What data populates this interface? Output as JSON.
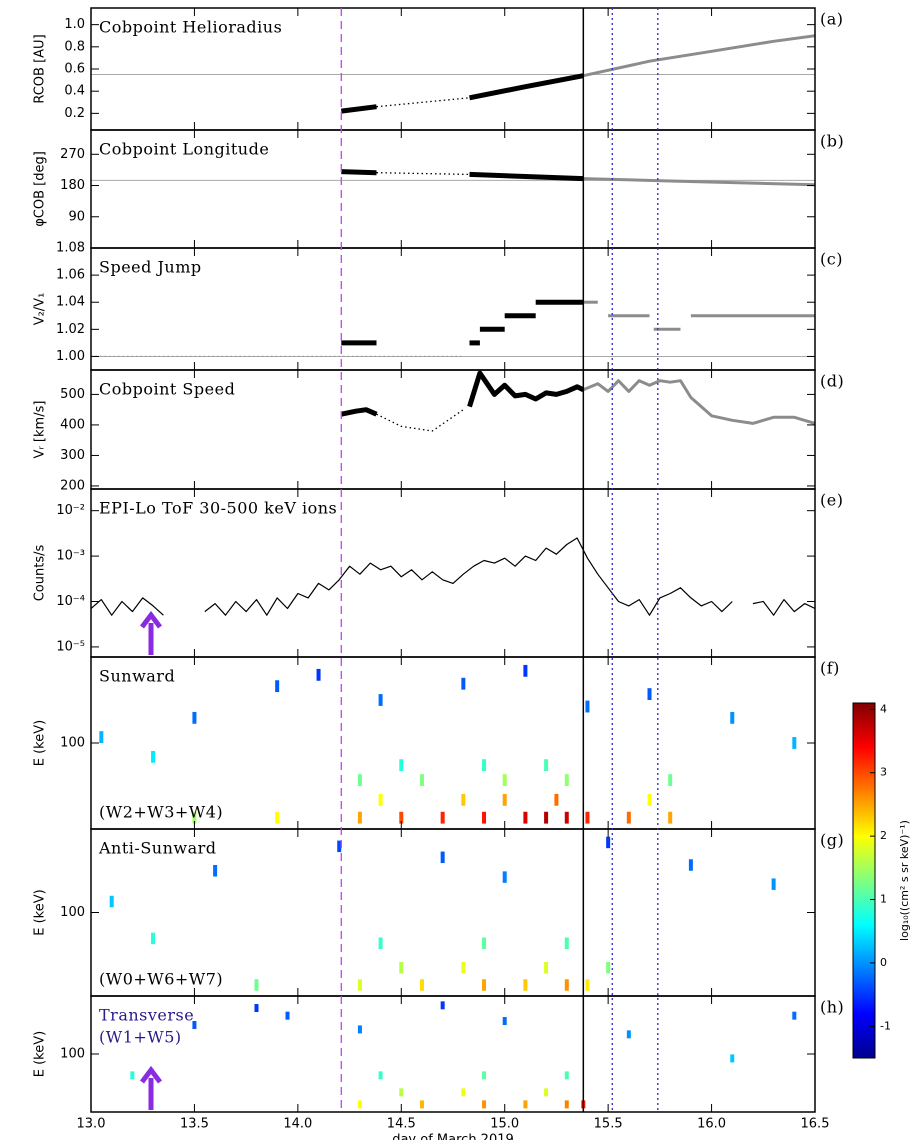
{
  "chart_data": [
    {
      "type": "line",
      "label": "(a)",
      "title": "Cobpoint Helioradius",
      "ylabel": "RCOB [AU]",
      "xlim": [
        13.0,
        16.5
      ],
      "ylim": [
        0.05,
        1.15
      ],
      "yticks": [
        {
          "value": 0.2,
          "label": "0.2"
        },
        {
          "value": 0.4,
          "label": "0.4"
        },
        {
          "value": 0.6,
          "label": "0.6"
        },
        {
          "value": 0.8,
          "label": "0.8"
        },
        {
          "value": 1.0,
          "label": "1.0"
        }
      ],
      "hline": 0.55,
      "series": [
        {
          "color": "#000000",
          "style": "thick",
          "x": [
            14.21,
            14.38
          ],
          "values": [
            0.22,
            0.26
          ]
        },
        {
          "color": "#000000",
          "style": "dotted",
          "x": [
            14.38,
            14.83
          ],
          "values": [
            0.26,
            0.34
          ]
        },
        {
          "color": "#000000",
          "style": "thick",
          "x": [
            14.83,
            15.1,
            15.38
          ],
          "values": [
            0.34,
            0.44,
            0.54
          ]
        },
        {
          "color": "#8c8c8c",
          "style": "medium",
          "x": [
            15.38,
            15.7,
            16.0,
            16.3,
            16.5
          ],
          "values": [
            0.54,
            0.67,
            0.76,
            0.85,
            0.9
          ]
        }
      ]
    },
    {
      "type": "line",
      "label": "(b)",
      "title": "Cobpoint Longitude",
      "ylabel": "φCOB [deg]",
      "xlim": [
        13.0,
        16.5
      ],
      "ylim": [
        0,
        340
      ],
      "yticks": [
        90,
        180,
        270
      ],
      "hline": 195,
      "series": [
        {
          "color": "#000000",
          "style": "thick",
          "x": [
            14.21,
            14.38
          ],
          "values": [
            220,
            217
          ]
        },
        {
          "color": "#000000",
          "style": "dotted",
          "x": [
            14.38,
            14.83
          ],
          "values": [
            217,
            212
          ]
        },
        {
          "color": "#000000",
          "style": "thick",
          "x": [
            14.83,
            15.1,
            15.38
          ],
          "values": [
            212,
            206,
            200
          ]
        },
        {
          "color": "#8c8c8c",
          "style": "medium",
          "x": [
            15.38,
            15.8,
            16.2,
            16.5
          ],
          "values": [
            200,
            193,
            187,
            182
          ]
        }
      ]
    },
    {
      "type": "line",
      "label": "(c)",
      "title": "Speed Jump",
      "ylabel": "V₂/V₁",
      "xlim": [
        13.0,
        16.5
      ],
      "ylim": [
        0.99,
        1.08
      ],
      "yticks": [
        {
          "value": 1.0,
          "label": "1.00"
        },
        {
          "value": 1.02,
          "label": "1.02"
        },
        {
          "value": 1.04,
          "label": "1.04"
        },
        {
          "value": 1.06,
          "label": "1.06"
        },
        {
          "value": 1.08,
          "label": "1.08"
        }
      ],
      "hline": 1.0,
      "series": [
        {
          "color": "#9a9a9a",
          "style": "dotted",
          "x": [
            13.0,
            14.8
          ],
          "values": [
            1.0,
            1.0
          ]
        },
        {
          "color": "#000000",
          "style": "thick",
          "x": [
            14.21,
            14.38
          ],
          "values": [
            1.01,
            1.01
          ]
        },
        {
          "color": "#000000",
          "style": "thick",
          "x": [
            14.83,
            14.88
          ],
          "values": [
            1.01,
            1.01
          ]
        },
        {
          "color": "#000000",
          "style": "thick",
          "x": [
            14.88,
            15.0
          ],
          "values": [
            1.02,
            1.02
          ]
        },
        {
          "color": "#000000",
          "style": "thick",
          "x": [
            15.0,
            15.15
          ],
          "values": [
            1.03,
            1.03
          ]
        },
        {
          "color": "#000000",
          "style": "thick",
          "x": [
            15.15,
            15.38
          ],
          "values": [
            1.04,
            1.04
          ]
        },
        {
          "color": "#8c8c8c",
          "style": "medium",
          "x": [
            15.38,
            15.45
          ],
          "values": [
            1.04,
            1.04
          ]
        },
        {
          "color": "#8c8c8c",
          "style": "medium",
          "x": [
            15.5,
            15.7
          ],
          "values": [
            1.03,
            1.03
          ]
        },
        {
          "color": "#8c8c8c",
          "style": "medium",
          "x": [
            15.72,
            15.85
          ],
          "values": [
            1.02,
            1.02
          ]
        },
        {
          "color": "#8c8c8c",
          "style": "medium",
          "x": [
            15.9,
            16.5
          ],
          "values": [
            1.03,
            1.03
          ]
        }
      ]
    },
    {
      "type": "line",
      "label": "(d)",
      "title": "Cobpoint Speed",
      "ylabel": "Vᵣ [km/s]",
      "xlim": [
        13.0,
        16.5
      ],
      "ylim": [
        190,
        580
      ],
      "yticks": [
        200,
        300,
        400,
        500
      ],
      "series": [
        {
          "color": "#000000",
          "style": "thick",
          "x": [
            14.21,
            14.28,
            14.33,
            14.38
          ],
          "values": [
            435,
            445,
            450,
            435
          ]
        },
        {
          "color": "#000000",
          "style": "dotted",
          "x": [
            14.38,
            14.5,
            14.65,
            14.8
          ],
          "values": [
            435,
            395,
            380,
            450
          ]
        },
        {
          "color": "#000000",
          "style": "thick",
          "x": [
            14.83,
            14.88,
            14.95,
            15.0,
            15.05,
            15.1,
            15.15,
            15.2,
            15.25,
            15.3,
            15.35,
            15.38
          ],
          "values": [
            460,
            570,
            500,
            530,
            495,
            500,
            485,
            505,
            500,
            510,
            525,
            515
          ]
        },
        {
          "color": "#8c8c8c",
          "style": "medium",
          "x": [
            15.38,
            15.45,
            15.5,
            15.55,
            15.6,
            15.65,
            15.7,
            15.75,
            15.8,
            15.85,
            15.9,
            16.0,
            16.1,
            16.2,
            16.3,
            16.4,
            16.5
          ],
          "values": [
            515,
            535,
            510,
            545,
            510,
            545,
            530,
            545,
            540,
            545,
            490,
            430,
            415,
            405,
            425,
            425,
            405
          ]
        }
      ]
    },
    {
      "type": "line",
      "label": "(e)",
      "title": "EPI-Lo ToF 30-500 keV ions",
      "ylabel": "Counts/s",
      "log": true,
      "xlim": [
        13.0,
        16.5
      ],
      "ylim": [
        6e-06,
        0.03
      ],
      "yticks": [
        {
          "value": 1e-05,
          "label": "10⁻⁵"
        },
        {
          "value": 0.0001,
          "label": "10⁻⁴"
        },
        {
          "value": 0.001,
          "label": "10⁻³"
        },
        {
          "value": 0.01,
          "label": "10⁻²"
        }
      ],
      "series": [
        {
          "color": "#000000",
          "style": "thin",
          "x": [
            13.0,
            13.05,
            13.1,
            13.15,
            13.2,
            13.25,
            13.3,
            13.35,
            13.4,
            13.45,
            13.5,
            13.55,
            13.6,
            13.65,
            13.7,
            13.75,
            13.8,
            13.85,
            13.9,
            13.95,
            14.0,
            14.05,
            14.1,
            14.15,
            14.2,
            14.25,
            14.3,
            14.35,
            14.4,
            14.45,
            14.5,
            14.55,
            14.6,
            14.65,
            14.7,
            14.75,
            14.8,
            14.85,
            14.9,
            14.95,
            15.0,
            15.05,
            15.1,
            15.15,
            15.2,
            15.25,
            15.3,
            15.35,
            15.4,
            15.45,
            15.5,
            15.55,
            15.6,
            15.65,
            15.7,
            15.75,
            15.8,
            15.85,
            15.9,
            15.95,
            16.0,
            16.05,
            16.1,
            16.15,
            16.2,
            16.25,
            16.3,
            16.35,
            16.4,
            16.45,
            16.5
          ],
          "values": [
            7e-05,
            0.00011,
            5e-05,
            0.0001,
            6e-05,
            0.00012,
            8e-05,
            5e-05,
            null,
            4e-05,
            null,
            6e-05,
            9e-05,
            5e-05,
            0.0001,
            6e-05,
            0.00011,
            5e-05,
            0.00012,
            7e-05,
            0.00015,
            0.00012,
            0.00025,
            0.00018,
            0.0003,
            0.0006,
            0.0004,
            0.0007,
            0.0005,
            0.0006,
            0.00035,
            0.0005,
            0.0003,
            0.00045,
            0.0003,
            0.00025,
            0.0004,
            0.0006,
            0.0008,
            0.0007,
            0.0009,
            0.0006,
            0.001,
            0.0008,
            0.0015,
            0.0011,
            0.0018,
            0.0025,
            0.0009,
            0.0004,
            0.0002,
            0.0001,
            8e-05,
            0.00011,
            5e-05,
            0.00012,
            0.00015,
            0.0002,
            0.00012,
            8e-05,
            0.0001,
            6e-05,
            0.0001,
            null,
            9e-05,
            0.0001,
            5e-05,
            0.00011,
            6e-05,
            9e-05,
            7e-05
          ]
        }
      ]
    },
    {
      "type": "heatmap",
      "label": "(f)",
      "title": "Sunward",
      "subtitle": "(W2+W3+W4)",
      "ylabel": "E (keV)",
      "log": true,
      "xlim": [
        13.0,
        16.5
      ],
      "ylim": [
        25,
        400
      ],
      "yticks": [
        100
      ],
      "x": [
        14.3,
        14.5,
        14.7,
        14.9,
        15.1,
        15.2,
        15.3,
        15.4,
        15.6,
        15.8,
        13.5,
        13.9,
        14.4,
        14.8,
        15.0,
        15.25,
        15.7,
        14.3,
        14.6,
        15.0,
        15.3,
        15.8,
        14.5,
        14.9,
        15.2,
        13.05,
        13.5,
        13.9,
        14.1,
        14.4,
        14.8,
        15.1,
        15.4,
        15.7,
        16.1,
        16.4,
        13.3
      ],
      "y": [
        30,
        30,
        30,
        30,
        30,
        30,
        30,
        30,
        30,
        30,
        30,
        30,
        40,
        40,
        40,
        40,
        40,
        55,
        55,
        55,
        55,
        55,
        70,
        70,
        70,
        110,
        150,
        250,
        300,
        200,
        260,
        320,
        180,
        220,
        150,
        100,
        80
      ],
      "values": [
        2.5,
        3.0,
        3.2,
        3.3,
        3.6,
        3.8,
        3.7,
        3.2,
        2.8,
        2.5,
        1.5,
        2.0,
        2.0,
        2.3,
        2.5,
        2.8,
        2.0,
        1.2,
        1.3,
        1.5,
        1.4,
        1.2,
        0.8,
        0.9,
        1.0,
        0.2,
        -0.2,
        -0.3,
        -0.5,
        -0.2,
        -0.3,
        -0.5,
        -0.2,
        -0.3,
        0.0,
        0.2,
        0.5
      ]
    },
    {
      "type": "heatmap",
      "label": "(g)",
      "title": "Anti-Sunward",
      "subtitle": "(W0+W6+W7)",
      "ylabel": "E (keV)",
      "log": true,
      "xlim": [
        13.0,
        16.5
      ],
      "ylim": [
        25,
        400
      ],
      "yticks": [
        100
      ],
      "x": [
        14.3,
        14.6,
        14.9,
        15.1,
        15.3,
        15.4,
        13.8,
        14.5,
        14.8,
        15.2,
        15.5,
        14.4,
        14.9,
        15.3,
        13.3,
        13.6,
        14.2,
        14.7,
        15.0,
        15.5,
        15.9,
        16.3,
        13.1
      ],
      "y": [
        30,
        30,
        30,
        30,
        30,
        30,
        30,
        40,
        40,
        40,
        40,
        60,
        60,
        60,
        65,
        200,
        300,
        250,
        180,
        320,
        220,
        160,
        120
      ],
      "values": [
        1.8,
        2.2,
        2.5,
        2.3,
        2.6,
        2.1,
        1.2,
        1.6,
        1.9,
        1.8,
        1.3,
        0.9,
        1.1,
        1.0,
        0.8,
        -0.2,
        -0.4,
        -0.3,
        -0.1,
        -0.5,
        -0.2,
        0.0,
        0.3
      ]
    },
    {
      "type": "heatmap",
      "label": "(h)",
      "title": "Transverse",
      "subtitle": "(W1+W5)",
      "text_color": "#2a1a8c",
      "ylabel": "E (keV)",
      "log": true,
      "xlim": [
        13.0,
        16.5
      ],
      "ylim": [
        25,
        400
      ],
      "yticks": [
        100
      ],
      "x": [
        14.3,
        14.6,
        14.9,
        15.1,
        15.3,
        15.38,
        14.5,
        14.8,
        15.2,
        14.4,
        14.9,
        15.3,
        13.5,
        13.8,
        13.95,
        14.3,
        14.7,
        15.0,
        15.6,
        16.1,
        16.4,
        13.2
      ],
      "y": [
        30,
        30,
        30,
        30,
        30,
        30,
        40,
        40,
        40,
        60,
        60,
        60,
        200,
        300,
        250,
        180,
        320,
        220,
        160,
        90,
        250,
        60
      ],
      "values": [
        2.0,
        2.4,
        2.6,
        2.5,
        2.7,
        3.3,
        1.6,
        1.9,
        1.8,
        0.9,
        1.1,
        1.0,
        -0.3,
        -0.5,
        -0.3,
        -0.1,
        -0.5,
        -0.2,
        0.0,
        0.3,
        -0.2,
        0.8
      ],
      "xlabel": "day of March 2019",
      "xticks": [
        {
          "value": 13.0,
          "label": "13.0"
        },
        {
          "value": 13.5,
          "label": "13.5"
        },
        {
          "value": 14.0,
          "label": "14.0"
        },
        {
          "value": 14.5,
          "label": "14.5"
        },
        {
          "value": 15.0,
          "label": "15.0"
        },
        {
          "value": 15.5,
          "label": "15.5"
        },
        {
          "value": 16.0,
          "label": "16.0"
        },
        {
          "value": 16.5,
          "label": "16.5"
        }
      ]
    }
  ],
  "events": [
    {
      "x": 14.21,
      "color": "#c040ff",
      "style": "dashed"
    },
    {
      "x": 15.38,
      "color": "#000000",
      "style": "solid"
    },
    {
      "x": 15.52,
      "color": "#2a2ad0",
      "style": "dotted"
    },
    {
      "x": 15.74,
      "color": "#2a2ad0",
      "style": "dotted"
    }
  ],
  "colorbar": {
    "label": "log₁₀((cm² s sr keV)⁻¹)",
    "lim": [
      -1.5,
      4.1
    ],
    "ticks": [
      -1,
      0,
      1,
      2,
      3,
      4
    ]
  }
}
